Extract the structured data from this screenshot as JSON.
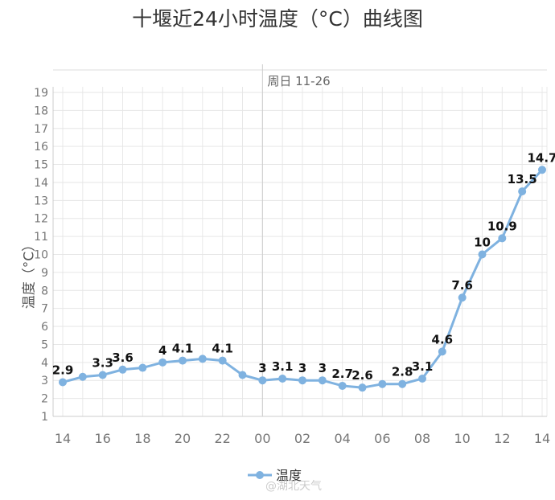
{
  "chart_data": {
    "type": "line",
    "title": "十堰近24小时温度（°C）曲线图",
    "ylabel": "温度（°C）",
    "xlabel": "",
    "ylim": [
      1,
      19
    ],
    "yticks": [
      1,
      2,
      3,
      4,
      5,
      6,
      7,
      8,
      9,
      10,
      11,
      12,
      13,
      14,
      15,
      16,
      17,
      18,
      19
    ],
    "x": [
      "14",
      "15",
      "16",
      "17",
      "18",
      "19",
      "20",
      "21",
      "22",
      "23",
      "00",
      "01",
      "02",
      "03",
      "04",
      "05",
      "06",
      "07",
      "08",
      "09",
      "10",
      "11",
      "12",
      "13",
      "14"
    ],
    "xtick_labels": [
      "14",
      "",
      "16",
      "",
      "18",
      "",
      "20",
      "",
      "22",
      "",
      "00",
      "",
      "02",
      "",
      "04",
      "",
      "06",
      "",
      "08",
      "",
      "10",
      "",
      "12",
      "",
      "14"
    ],
    "series": [
      {
        "name": "温度",
        "color": "#7fb2e0",
        "values": [
          2.9,
          3.2,
          3.3,
          3.6,
          3.7,
          4,
          4.1,
          4.2,
          4.1,
          3.3,
          3,
          3.1,
          3,
          3,
          2.7,
          2.6,
          2.8,
          2.8,
          3.1,
          4.6,
          7.6,
          10,
          10.9,
          13.5,
          14.7
        ],
        "labels": [
          "2.9",
          "",
          "3.3",
          "3.6",
          "",
          "4",
          "4.1",
          "",
          "4.1",
          "",
          "3",
          "3.1",
          "3",
          "3",
          "2.7",
          "2.6",
          "",
          "2.8",
          "3.1",
          "4.6",
          "7.6",
          "10",
          "10.9",
          "13.5",
          "14.7"
        ]
      }
    ],
    "day_marker": {
      "at": "00",
      "label": "周日 11-26"
    },
    "grid": true,
    "legend": "bottom-center"
  },
  "watermark": "@湖北天气"
}
